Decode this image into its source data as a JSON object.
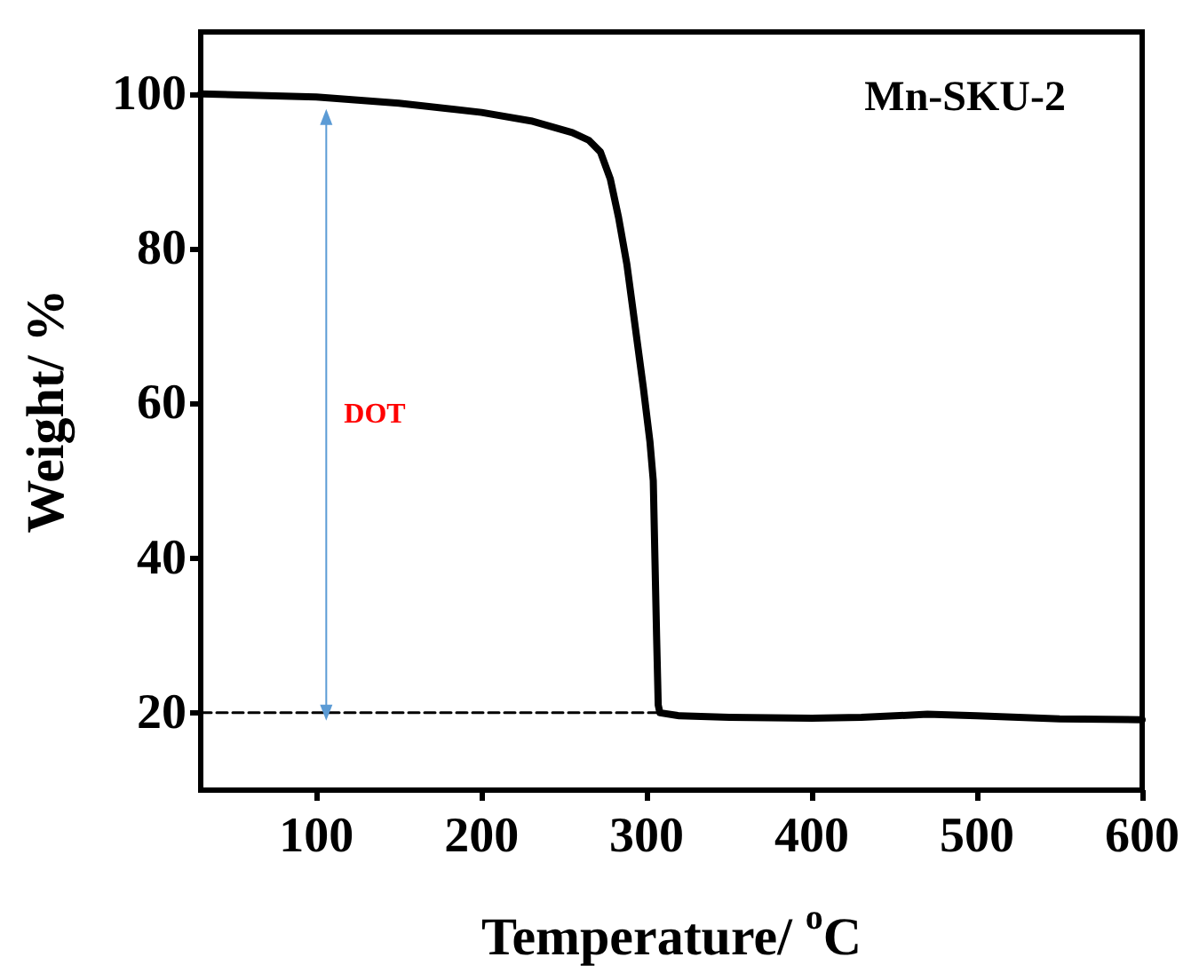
{
  "chart_data": {
    "type": "line",
    "title": "Mn-SKU-2",
    "xlabel": "Temperature/ $^{o}$C",
    "ylabel": "Weight/ %",
    "xlim": [
      30,
      600
    ],
    "xticks": [
      100,
      200,
      300,
      400,
      500,
      600
    ],
    "ylim": [
      10,
      108
    ],
    "yticks": [
      20,
      40,
      60,
      80,
      100
    ],
    "grid": false,
    "marker": "none",
    "annotations": [
      "DOT"
    ],
    "series": [
      {
        "color": "#000000",
        "line_style": "solid",
        "x": [
          30,
          100,
          150,
          200,
          230,
          255,
          265,
          272,
          278,
          283,
          288,
          293,
          298,
          302,
          304,
          305,
          306,
          307,
          308,
          320,
          350,
          400,
          430,
          470,
          500,
          550,
          600
        ],
        "values": [
          100,
          99.6,
          98.8,
          97.6,
          96.5,
          95,
          94,
          92.5,
          89,
          84,
          78,
          70,
          62,
          55,
          50,
          40,
          30,
          21,
          20,
          19.6,
          19.4,
          19.3,
          19.4,
          19.8,
          19.6,
          19.2,
          19.1
        ]
      },
      {
        "color": "#000000",
        "line_style": "dashed",
        "x": [
          30,
          307
        ],
        "values": [
          20,
          20
        ]
      },
      {
        "color": "#5b9bd5",
        "line_style": "solid",
        "marker": "triangle",
        "x": [
          106,
          106
        ],
        "values": [
          20,
          97
        ]
      }
    ]
  }
}
